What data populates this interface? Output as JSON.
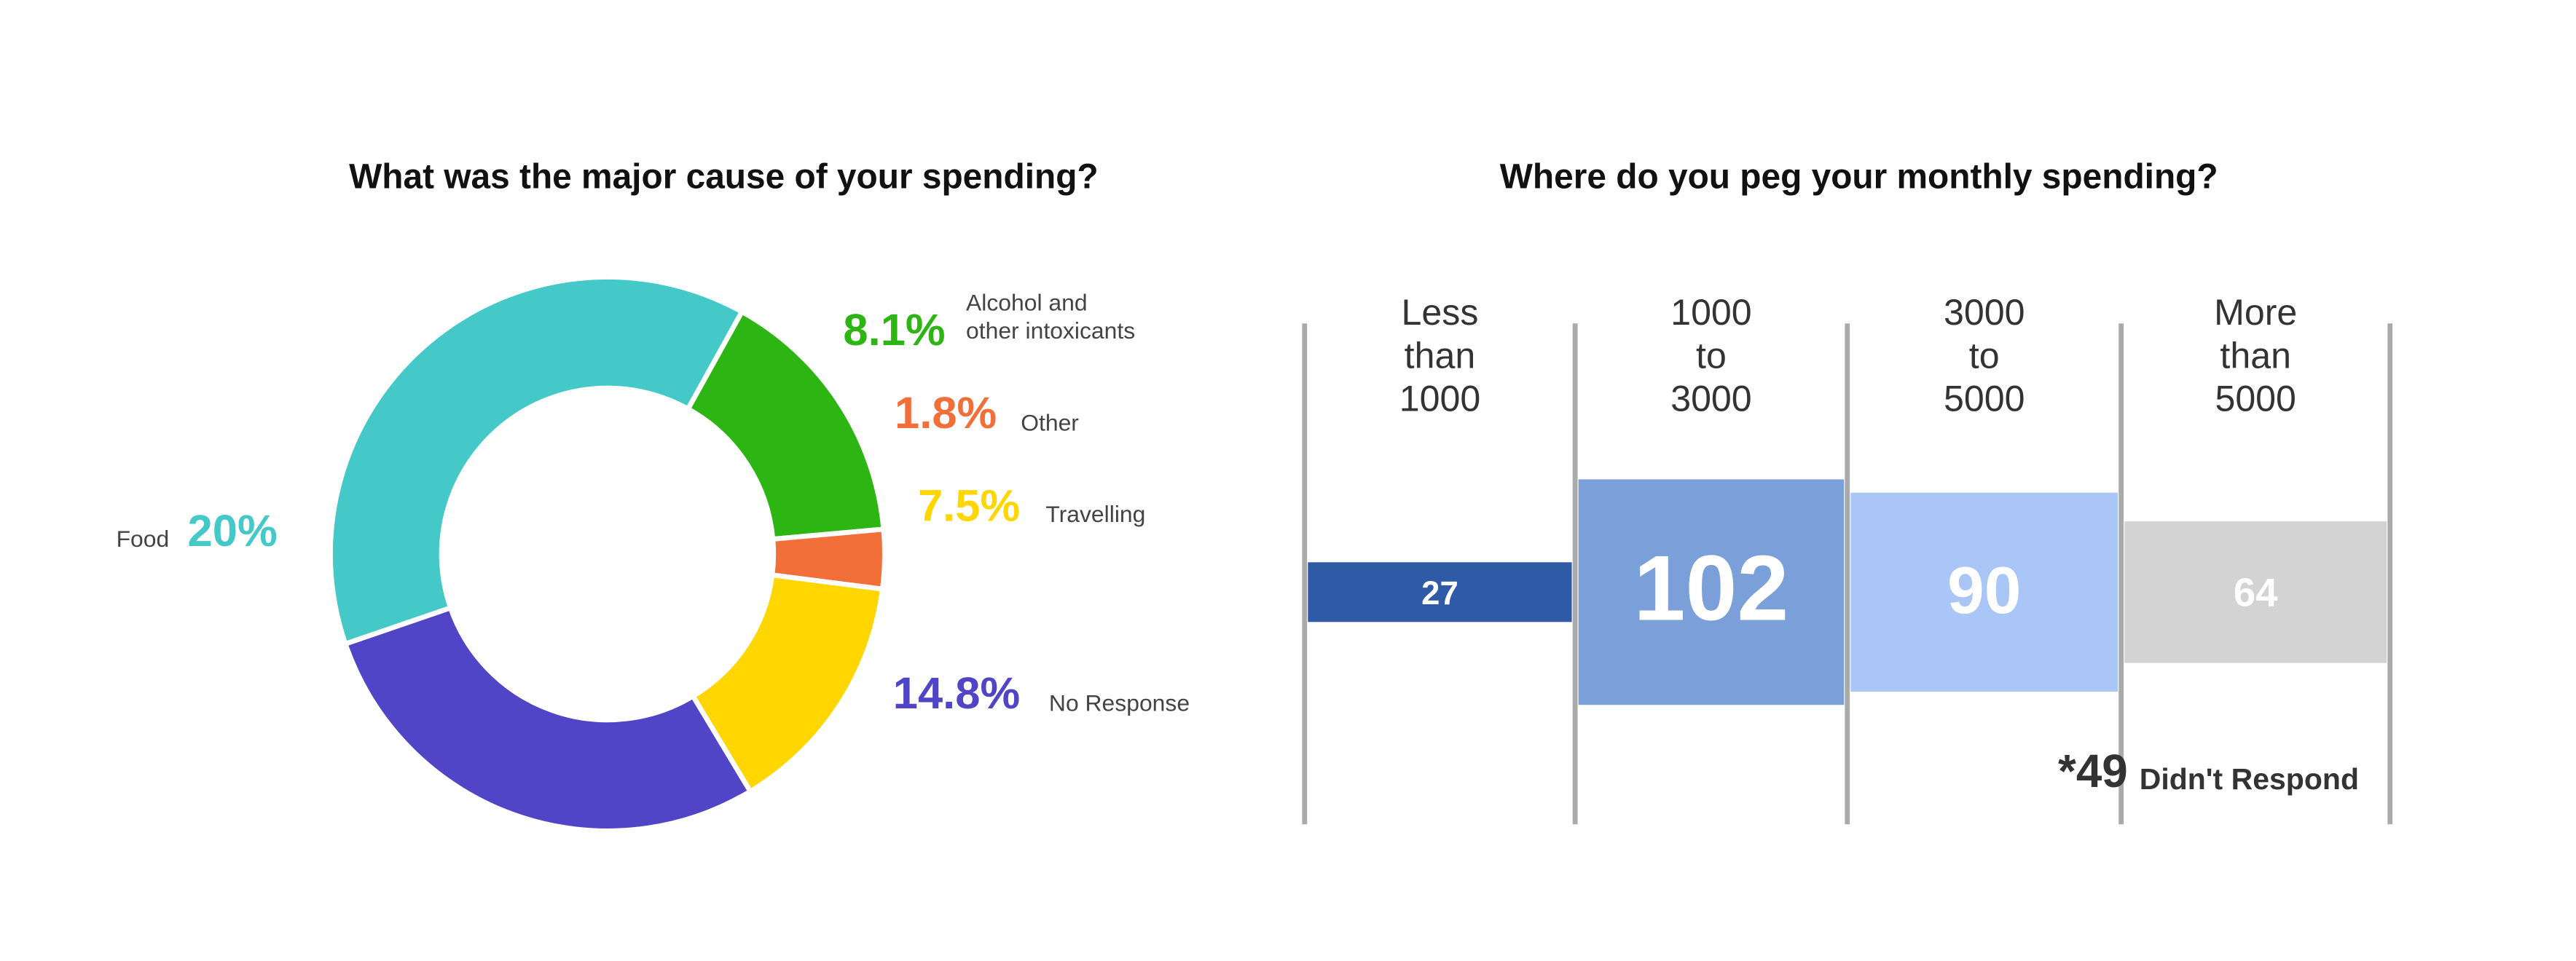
{
  "chart_data": [
    {
      "type": "pie",
      "title": "What was the major cause of your spending?",
      "categories": [
        [
          "Alcohol and",
          "other intoxicants"
        ],
        [
          "Other"
        ],
        [
          "Travelling"
        ],
        [
          "No Response"
        ],
        [
          "Food"
        ]
      ],
      "values": [
        8.1,
        1.8,
        7.5,
        14.8,
        20
      ],
      "value_labels": [
        "8.1%",
        "1.8%",
        "7.5%",
        "14.8%",
        "20%"
      ],
      "colors": [
        "#2db514",
        "#f36f3a",
        "#ffd600",
        "#4f45c6",
        "#45c8c8"
      ]
    },
    {
      "type": "bar",
      "title": "Where do you peg your monthly spending?",
      "categories": [
        [
          "Less",
          "than",
          "1000"
        ],
        [
          "1000",
          "to",
          "3000"
        ],
        [
          "3000",
          "to",
          "5000"
        ],
        [
          "More",
          "than",
          "5000"
        ]
      ],
      "values": [
        27,
        102,
        90,
        64
      ],
      "colors": [
        "#2f5aa5",
        "#7b9fd9",
        "#a9c6f7",
        "#d3d3d3"
      ],
      "note": {
        "label": "*49",
        "text": "Didn't Respond"
      }
    }
  ]
}
